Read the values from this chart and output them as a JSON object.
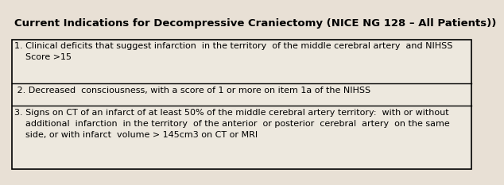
{
  "title": "Current Indications for Decompressive Craniectomy (NICE NG 128 – All Patients))",
  "background_color": "#e8e0d5",
  "box_fill_color": "#ede8de",
  "box_edge_color": "#000000",
  "title_color": "#000000",
  "text_color": "#000000",
  "title_fontsize": 9.5,
  "body_fontsize": 8.0,
  "item1_line1": "1. Clinical deficits that suggest infarction  in the territory  of the middle cerebral artery  and NIHSS",
  "item1_line2": "    Score >15",
  "item2_line1": " 2. Decreased  consciousness, with a score of 1 or more on item 1a of the NIHSS",
  "item3_line1": "3. Signs on CT of an infarct of at least 50% of the middle cerebral artery territory:  with or without",
  "item3_line2": "    additional  infarction  in the territory  of the anterior  or posterior  cerebral  artery  on the same",
  "item3_line3": "    side, or with infarct  volume > 145cm3 on CT or MRI"
}
